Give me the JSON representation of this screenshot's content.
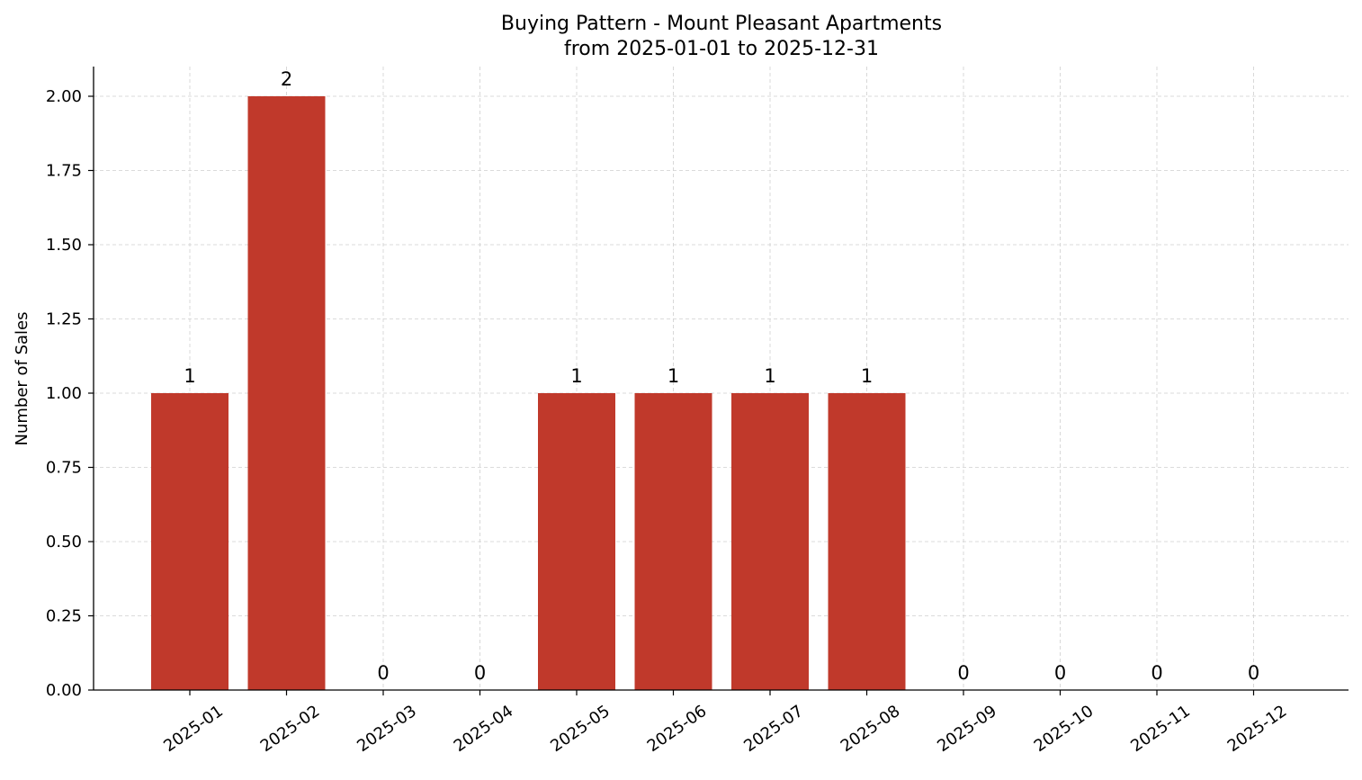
{
  "chart_data": {
    "type": "bar",
    "title": "Buying Pattern - Mount Pleasant Apartments",
    "subtitle": "from 2025-01-01 to 2025-12-31",
    "xlabel": "",
    "ylabel": "Number of Sales",
    "categories": [
      "2025-01",
      "2025-02",
      "2025-03",
      "2025-04",
      "2025-05",
      "2025-06",
      "2025-07",
      "2025-08",
      "2025-09",
      "2025-10",
      "2025-11",
      "2025-12"
    ],
    "values": [
      1,
      2,
      0,
      0,
      1,
      1,
      1,
      1,
      0,
      0,
      0,
      0
    ],
    "data_labels": [
      "1",
      "2",
      "0",
      "0",
      "1",
      "1",
      "1",
      "1",
      "0",
      "0",
      "0",
      "0"
    ],
    "yticks": [
      "0.00",
      "0.25",
      "0.50",
      "0.75",
      "1.00",
      "1.25",
      "1.50",
      "1.75",
      "2.00"
    ],
    "ylim": [
      0,
      2.1
    ],
    "grid": true,
    "bar_color": "#c0392b",
    "legend": "none"
  }
}
